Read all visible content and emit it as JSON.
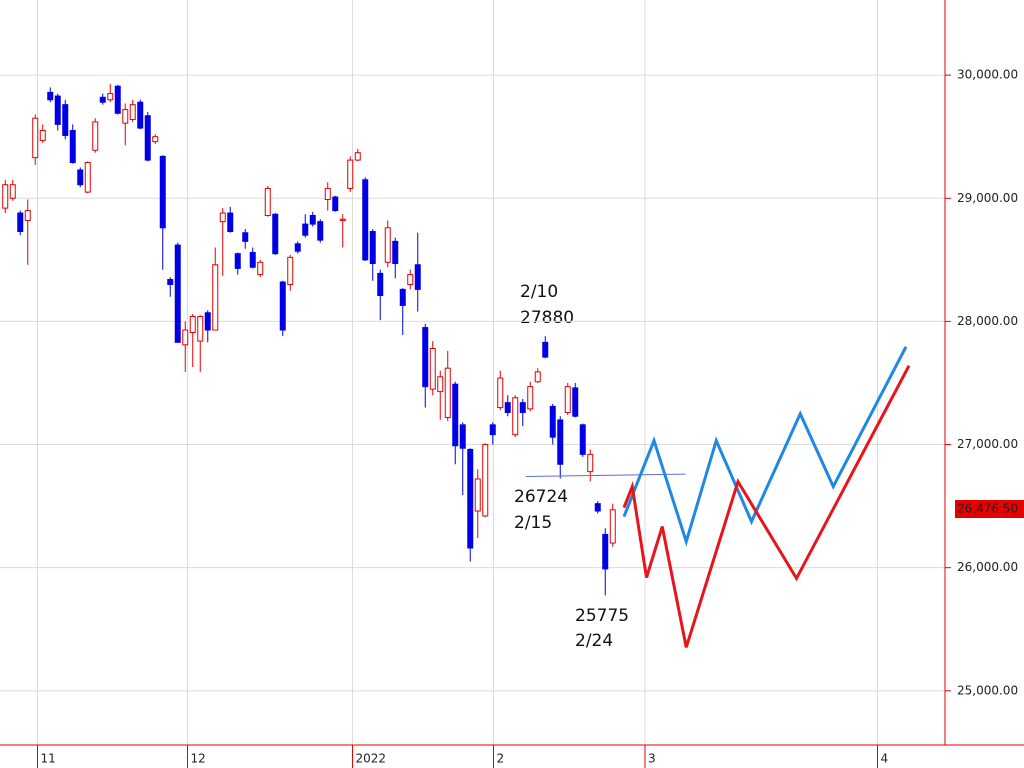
{
  "chart_data": {
    "type": "candlestick",
    "x": [
      1,
      2,
      3,
      4,
      5,
      6,
      7,
      8,
      9,
      10,
      11,
      12,
      13,
      14,
      15,
      16,
      17,
      18,
      19,
      20,
      21,
      22,
      23,
      24,
      25,
      26,
      27,
      28,
      29,
      30,
      31,
      32,
      33,
      34,
      35,
      36,
      37,
      38,
      39,
      40,
      41,
      42,
      43,
      44,
      45,
      46,
      47,
      48,
      49,
      50,
      51,
      52,
      53,
      54,
      55,
      56,
      57,
      58,
      59,
      60,
      61,
      62,
      63,
      64,
      65,
      66,
      67,
      68,
      69,
      70,
      71,
      72,
      73,
      74,
      75,
      76,
      77,
      78,
      79,
      80,
      81,
      82
    ],
    "open": [
      28920,
      29000,
      28880,
      28820,
      29330,
      29470,
      29860,
      29830,
      29760,
      29550,
      29230,
      29050,
      29390,
      29820,
      29800,
      29910,
      29610,
      29640,
      29780,
      29670,
      29460,
      29340,
      28340,
      28620,
      27810,
      27910,
      27840,
      28070,
      27930,
      28810,
      28880,
      28550,
      28720,
      28560,
      28380,
      28860,
      28870,
      28320,
      28300,
      28630,
      28790,
      28860,
      28810,
      28990,
      29010,
      28820,
      29080,
      29310,
      29150,
      28730,
      28390,
      28480,
      28650,
      28260,
      28300,
      28460,
      27950,
      27450,
      27430,
      27220,
      27490,
      27160,
      26960,
      26460,
      26420,
      27160,
      27300,
      27340,
      27080,
      27340,
      27290,
      27510,
      27830,
      27310,
      27200,
      27260,
      27460,
      27160,
      26780,
      26520,
      26270,
      26200
    ],
    "high": [
      29150,
      29150,
      28900,
      28990,
      29680,
      29600,
      29900,
      29850,
      29800,
      29600,
      29250,
      29300,
      29650,
      29850,
      29930,
      29920,
      29770,
      29800,
      29800,
      29700,
      29520,
      29350,
      28360,
      28640,
      28000,
      28060,
      28050,
      28090,
      28600,
      28920,
      28930,
      28560,
      28750,
      28600,
      28500,
      29100,
      28880,
      28330,
      28540,
      28650,
      28870,
      28890,
      28830,
      29130,
      29020,
      28870,
      29340,
      29400,
      29170,
      28750,
      28420,
      28820,
      28680,
      28270,
      28420,
      28720,
      27980,
      27840,
      27600,
      27760,
      27510,
      27180,
      26970,
      26800,
      27010,
      27180,
      27600,
      27400,
      27400,
      27370,
      27510,
      27620,
      27880,
      27330,
      27230,
      27500,
      27500,
      27170,
      26960,
      26540,
      26320,
      26520
    ],
    "low": [
      28880,
      28980,
      28700,
      28460,
      29270,
      29450,
      29780,
      29550,
      29480,
      29280,
      29090,
      29040,
      29370,
      29760,
      29780,
      29680,
      29430,
      29620,
      29560,
      29300,
      29440,
      28420,
      28200,
      27830,
      27590,
      27630,
      27590,
      27830,
      27930,
      28370,
      28720,
      28380,
      28590,
      28430,
      28360,
      28850,
      28540,
      27880,
      28250,
      28550,
      28680,
      28770,
      28640,
      28900,
      28890,
      28600,
      29050,
      29300,
      28490,
      28330,
      28010,
      28440,
      28350,
      27890,
      28260,
      28080,
      27300,
      27400,
      27200,
      27190,
      26840,
      26590,
      26050,
      26240,
      26410,
      27000,
      27280,
      27230,
      27060,
      27150,
      27270,
      27500,
      27700,
      27000,
      26724,
      27240,
      27220,
      26900,
      26700,
      26440,
      25775,
      26170
    ],
    "close": [
      29110,
      29110,
      28730,
      28900,
      29650,
      29550,
      29800,
      29600,
      29510,
      29290,
      29110,
      29290,
      29620,
      29780,
      29850,
      29690,
      29720,
      29760,
      29570,
      29310,
      29500,
      28760,
      28300,
      27830,
      27930,
      28040,
      28040,
      27930,
      28460,
      28880,
      28730,
      28430,
      28650,
      28440,
      28480,
      29080,
      28550,
      27930,
      28520,
      28570,
      28700,
      28790,
      28660,
      29080,
      28900,
      28830,
      29310,
      29370,
      28500,
      28470,
      28210,
      28760,
      28470,
      28130,
      28380,
      28260,
      27470,
      27780,
      27550,
      27620,
      26990,
      26970,
      26160,
      26720,
      27000,
      27080,
      27540,
      27260,
      27380,
      27260,
      27470,
      27590,
      27710,
      27060,
      26840,
      27470,
      27230,
      26920,
      26920,
      26460,
      25990,
      26470
    ],
    "up_color": "#e60000",
    "down_color": "#0000e6",
    "projections": [
      {
        "color": "#1e88e5",
        "x": [
          83.5,
          87.5,
          91.8,
          95.8,
          100.5,
          107,
          111.4,
          121.1
        ],
        "values": [
          26415,
          27032,
          26212,
          27032,
          26375,
          27250,
          26659,
          27794
        ]
      },
      {
        "color": "#e8141b",
        "x": [
          83.5,
          84.6,
          86.5,
          88.6,
          91.8,
          98.7,
          106.5,
          121.5
        ],
        "values": [
          26488,
          26659,
          25920,
          26334,
          25353,
          26699,
          25913,
          27640
        ]
      }
    ],
    "level_line": {
      "color": "#5a6fd6",
      "x": [
        70.4,
        91.7
      ],
      "values": [
        26740,
        26760
      ]
    },
    "annotations": [
      "2/10",
      "27880",
      "26724",
      "2/15",
      "25775",
      "2/24"
    ],
    "last_price": {
      "value": 26476.5,
      "label": "26,476.50"
    },
    "xlim": [
      0.3,
      126.3
    ],
    "xticks": [
      {
        "value": 5.3,
        "label": "11"
      },
      {
        "value": 25.3,
        "label": "12"
      },
      {
        "value": 47.3,
        "label": "2022"
      },
      {
        "value": 66.1,
        "label": "2"
      },
      {
        "value": 86.3,
        "label": "3"
      },
      {
        "value": 117.3,
        "label": "4"
      }
    ],
    "ylim": [
      24560,
      30610
    ],
    "yticks": [
      {
        "value": 25000,
        "label": "25,000.00"
      },
      {
        "value": 26000,
        "label": "26,000.00"
      },
      {
        "value": 27000,
        "label": "27,000.00"
      },
      {
        "value": 28000,
        "label": "28,000.00"
      },
      {
        "value": 29000,
        "label": "29,000.00"
      },
      {
        "value": 30000,
        "label": "30,000.00"
      }
    ],
    "grid": true
  }
}
